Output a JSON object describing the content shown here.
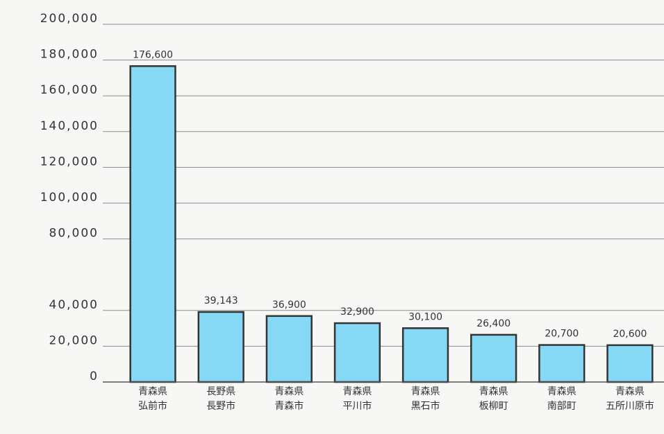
{
  "chart_data": {
    "type": "bar",
    "categories": [
      "青森県\n弘前市",
      "長野県\n長野市",
      "青森県\n青森市",
      "青森県\n平川市",
      "青森県\n黒石市",
      "青森県\n板柳町",
      "青森県\n南部町",
      "青森県\n五所川原市"
    ],
    "values": [
      176600,
      39143,
      36900,
      32900,
      30100,
      26400,
      20700,
      20600
    ],
    "value_labels": [
      "176,600",
      "39,143",
      "36,900",
      "32,900",
      "30,100",
      "26,400",
      "20,700",
      "20,600"
    ],
    "color": "#86d9f5",
    "ylim": [
      0,
      200000
    ],
    "yticks": [
      0,
      {
        "value": 20000,
        "label": "20,000"
      },
      {
        "value": 40000,
        "label": "40,000"
      },
      {
        "value": 80000,
        "label": "80,000"
      },
      {
        "value": 100000,
        "label": "100,000"
      },
      {
        "value": 120000,
        "label": "120,000"
      },
      {
        "value": 140000,
        "label": "140,000"
      },
      {
        "value": 160000,
        "label": "160,000"
      },
      {
        "value": 180000,
        "label": "180,000"
      },
      {
        "value": 200000,
        "label": "200,000"
      }
    ],
    "grid": true
  }
}
